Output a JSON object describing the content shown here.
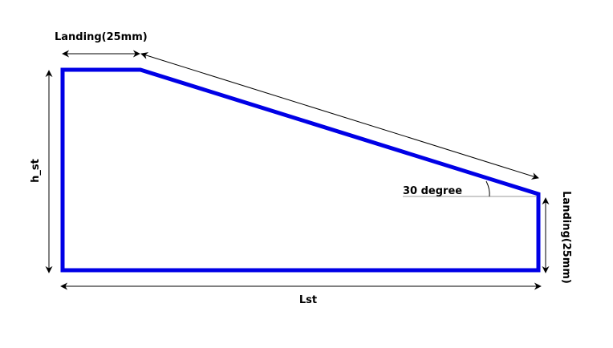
{
  "diagram": {
    "labels": {
      "top_landing": "Landing(25mm)",
      "right_landing": "Landing(25mm)",
      "height": "h_st",
      "length": "Lst",
      "angle": "30 degree"
    },
    "colors": {
      "outline": "#0000e6",
      "dimension": "#000000",
      "reference_line": "#999999"
    }
  }
}
